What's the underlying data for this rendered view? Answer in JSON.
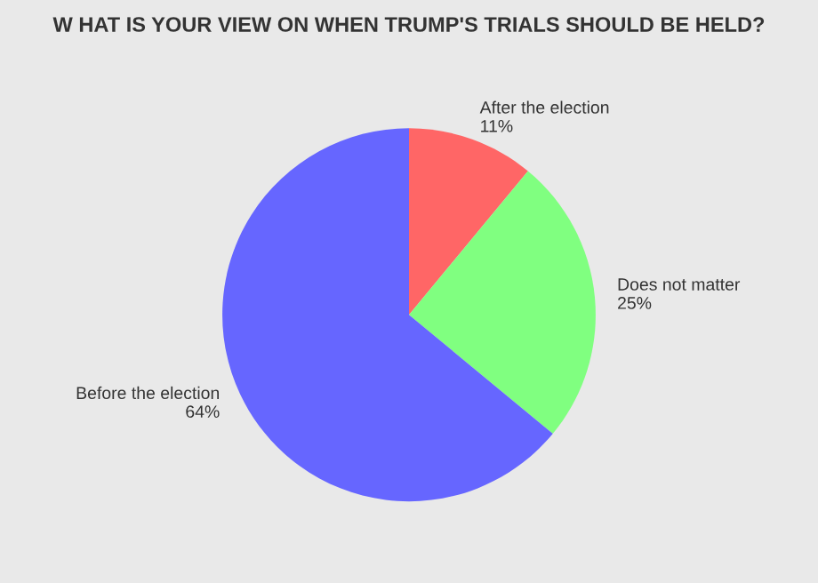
{
  "chart_data": {
    "type": "pie",
    "title": "W HAT IS YOUR VIEW ON WHEN TRUMP'S TRIALS SHOULD BE HELD?",
    "categories": [
      "After the election",
      "Does not matter",
      "Before the election"
    ],
    "values": [
      11,
      25,
      64
    ],
    "colors": [
      "#ff6666",
      "#80ff80",
      "#6666ff"
    ],
    "value_labels": [
      "11%",
      "25%",
      "64%"
    ]
  }
}
